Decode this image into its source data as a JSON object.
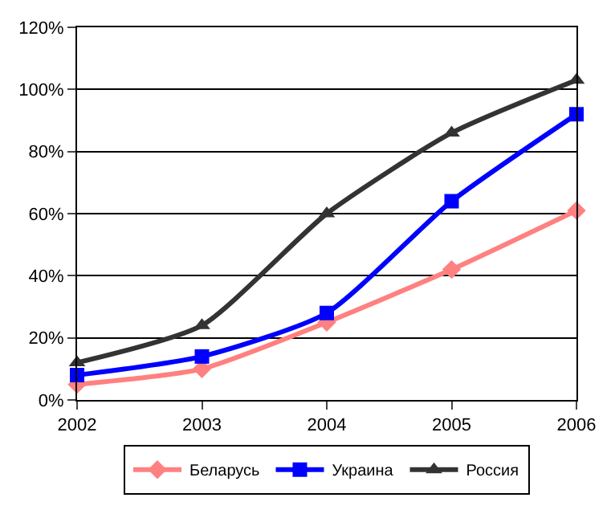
{
  "chart_data": {
    "type": "line",
    "x": [
      2002,
      2003,
      2004,
      2005,
      2006
    ],
    "xlim": [
      2002,
      2006
    ],
    "xticks": [
      2002,
      2003,
      2004,
      2005,
      2006
    ],
    "ylim": [
      0,
      120
    ],
    "yticks": [
      {
        "value": 0,
        "label": "0%"
      },
      {
        "value": 20,
        "label": "20%"
      },
      {
        "value": 40,
        "label": "40%"
      },
      {
        "value": 60,
        "label": "60%"
      },
      {
        "value": 80,
        "label": "80%"
      },
      {
        "value": 100,
        "label": "100%"
      },
      {
        "value": 120,
        "label": "120%"
      }
    ],
    "grid": "y",
    "legend": "bottom",
    "line_style": "solid",
    "series": [
      {
        "name": "Беларусь",
        "color": "#ff8080",
        "marker": "diamond",
        "values": [
          5,
          10,
          25,
          42,
          61
        ]
      },
      {
        "name": "Украина",
        "color": "#0000ff",
        "marker": "square",
        "values": [
          8,
          14,
          28,
          64,
          92
        ]
      },
      {
        "name": "Россия",
        "color": "#333333",
        "marker": "triangle",
        "values": [
          12,
          24,
          60,
          86,
          103
        ]
      }
    ]
  }
}
